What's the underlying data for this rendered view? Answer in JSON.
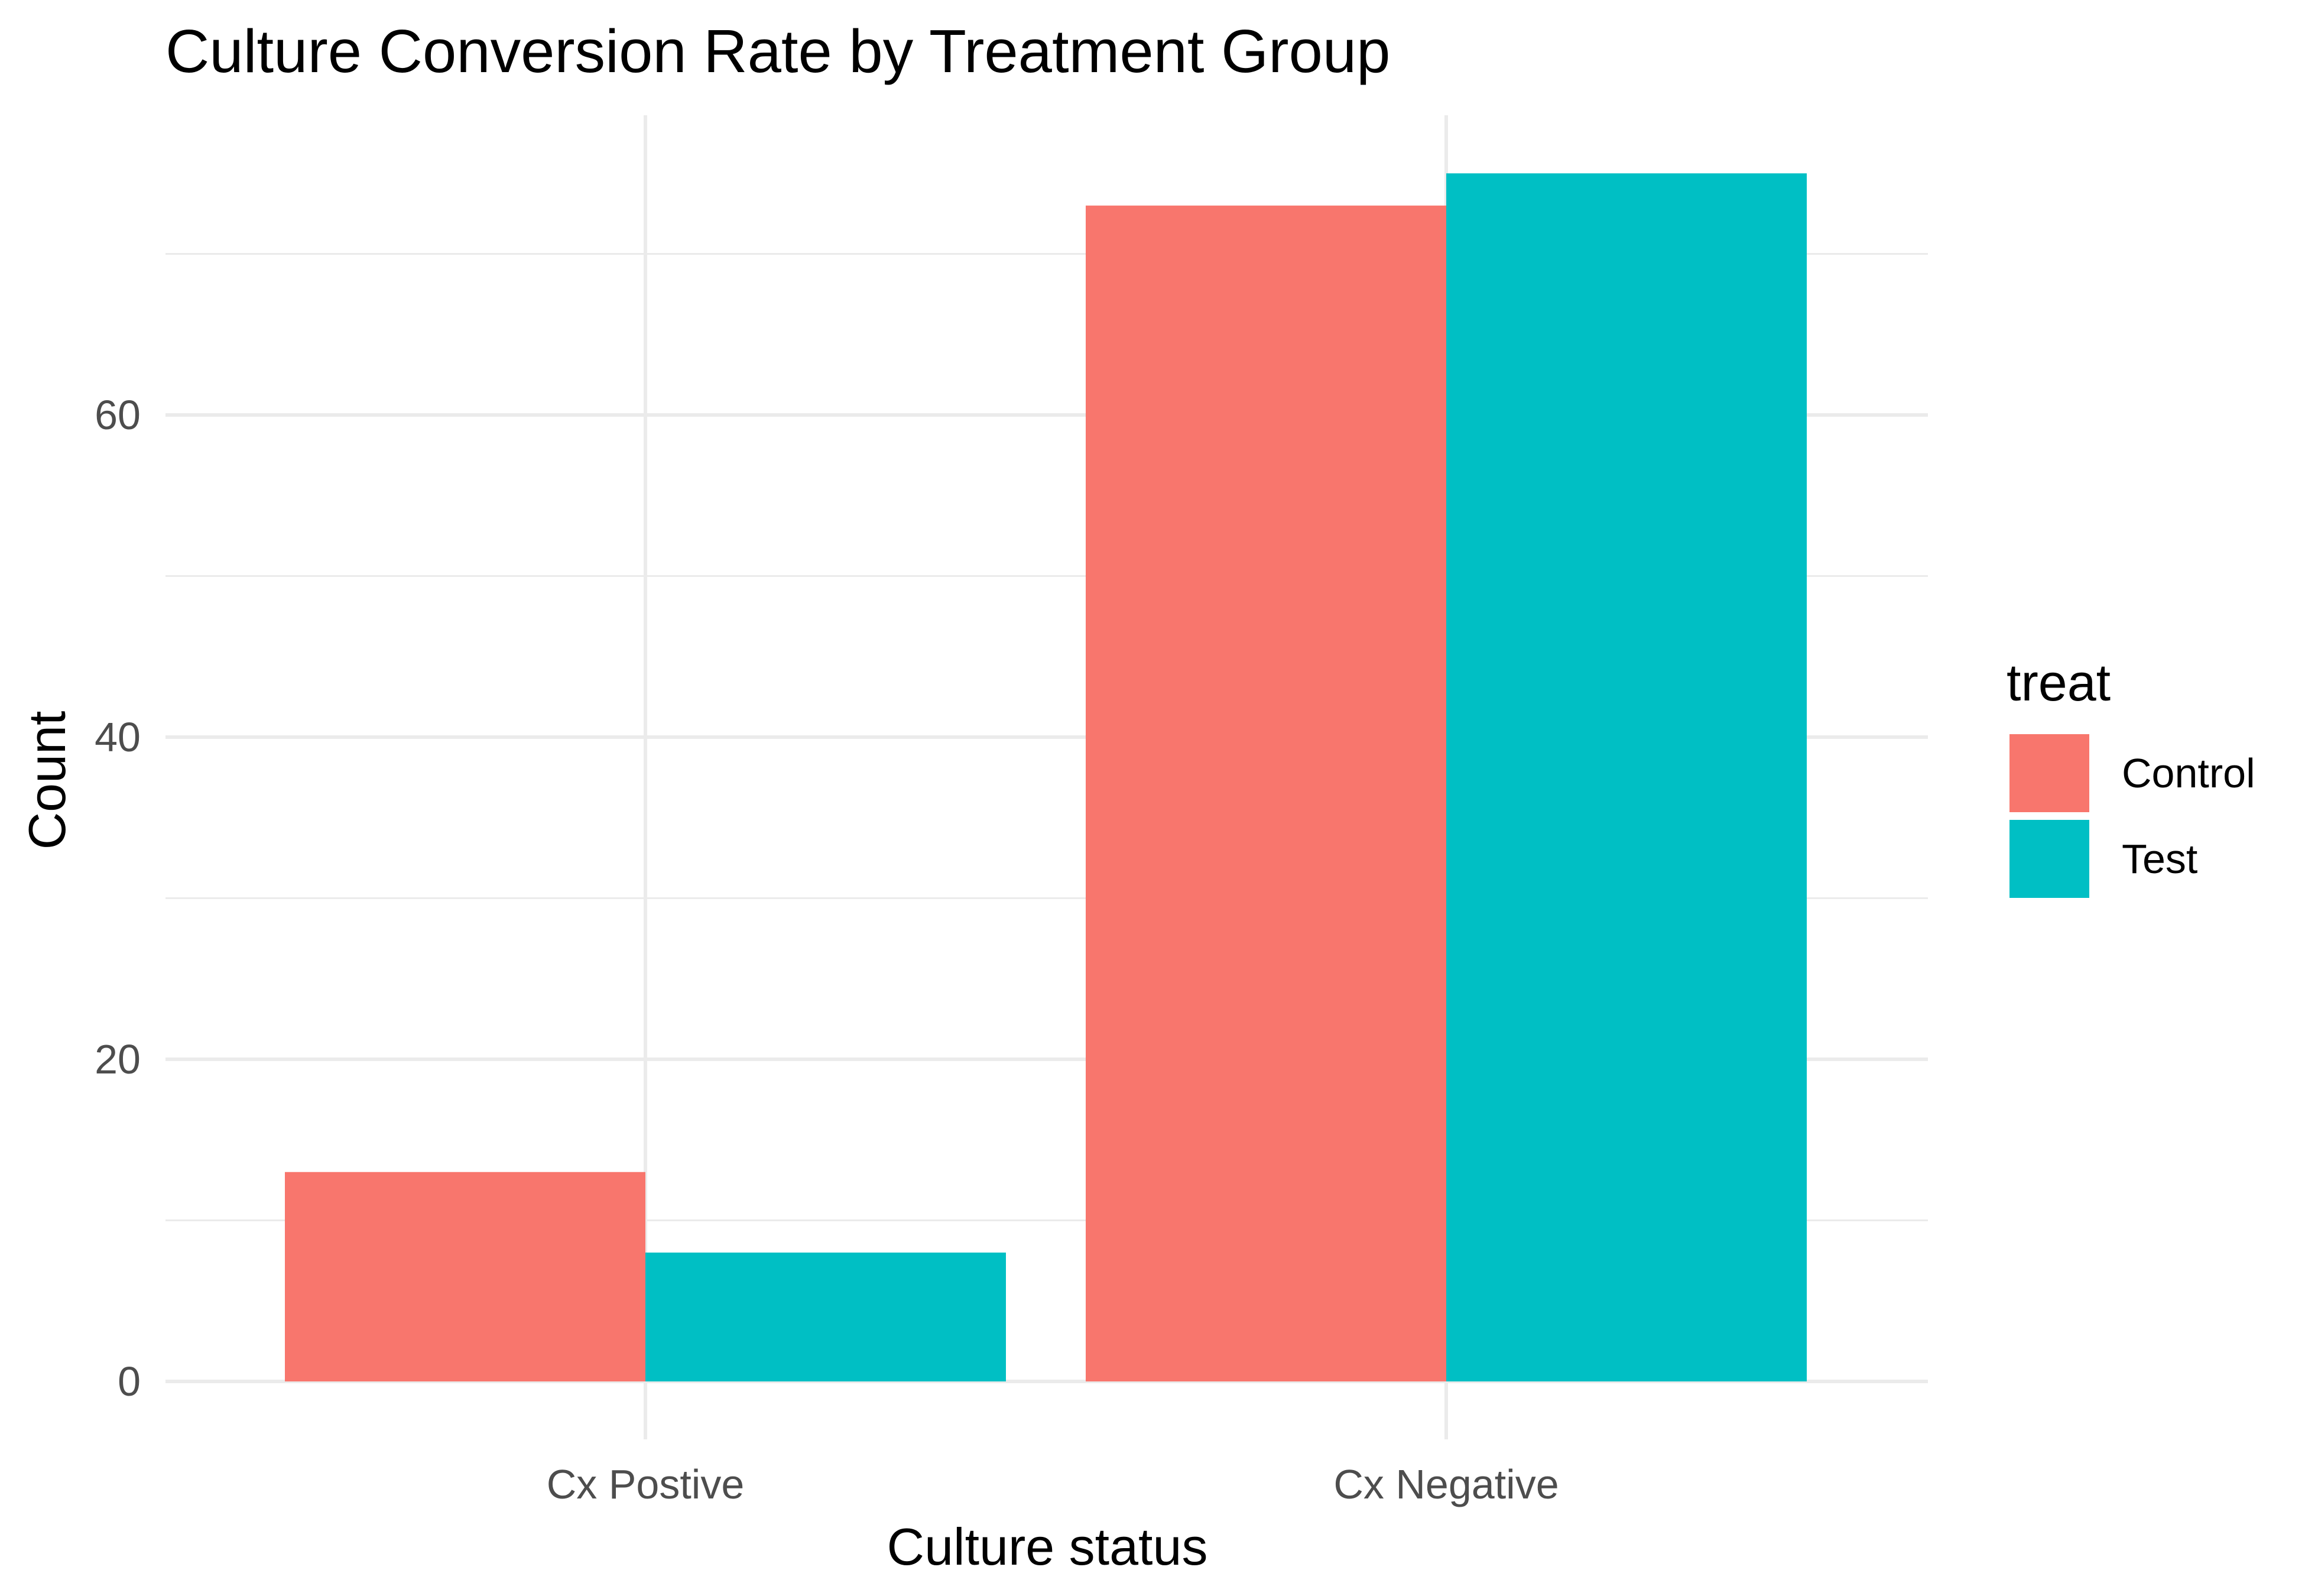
{
  "chart_data": {
    "type": "bar",
    "title": "Culture Conversion Rate by Treatment Group",
    "xlabel": "Culture status",
    "ylabel": "Count",
    "categories": [
      "Cx Postive",
      "Cx Negative"
    ],
    "series": [
      {
        "name": "Control",
        "color": "#F8766D",
        "values": [
          13,
          73
        ]
      },
      {
        "name": "Test",
        "color": "#00BFC4",
        "values": [
          8,
          75
        ]
      }
    ],
    "ylim": [
      0,
      78.6
    ],
    "yticks": [
      0,
      20,
      40,
      60
    ],
    "grid": true,
    "legend": {
      "title": "treat",
      "position": "right"
    }
  }
}
